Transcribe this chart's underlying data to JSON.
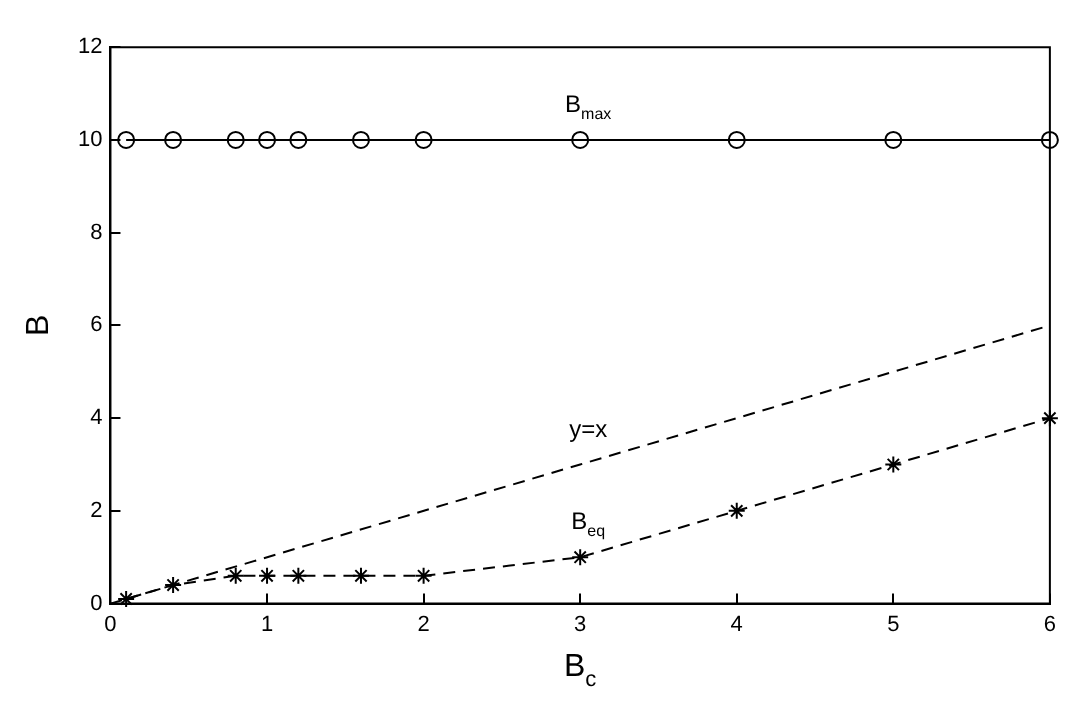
{
  "chart_data": {
    "type": "line",
    "xlabel": "B$_{c}$",
    "ylabel": "B",
    "xlim": [
      0,
      6
    ],
    "ylim": [
      0,
      12
    ],
    "xticks": [
      0,
      1,
      2,
      3,
      4,
      5,
      6
    ],
    "yticks": [
      0,
      2,
      4,
      6,
      8,
      10,
      12
    ],
    "grid": false,
    "legend": false,
    "series": [
      {
        "name": "B$_{max}$",
        "color": "#000000",
        "marker": "circle",
        "line_style": "solid",
        "x": [
          0.1,
          0.4,
          0.8,
          1,
          1.2,
          1.6,
          2,
          3,
          4,
          5,
          6
        ],
        "values": [
          10,
          10,
          10,
          10,
          10,
          10,
          10,
          10,
          10,
          10,
          10
        ]
      },
      {
        "name": "y=x",
        "color": "#000000",
        "marker": "none",
        "line_style": "dashed",
        "x": [
          0,
          3,
          6
        ],
        "values": [
          0,
          3,
          6
        ]
      },
      {
        "name": "B$_{eq}$",
        "color": "#000000",
        "marker": "cross",
        "line_style": "dashed",
        "x": [
          0.1,
          0.4,
          0.8,
          1,
          1.2,
          1.6,
          2,
          3,
          4,
          5,
          6
        ],
        "values": [
          0.1,
          0.4,
          0.6,
          0.6,
          0.6,
          0.6,
          0.6,
          1,
          2,
          3,
          4
        ]
      }
    ]
  }
}
